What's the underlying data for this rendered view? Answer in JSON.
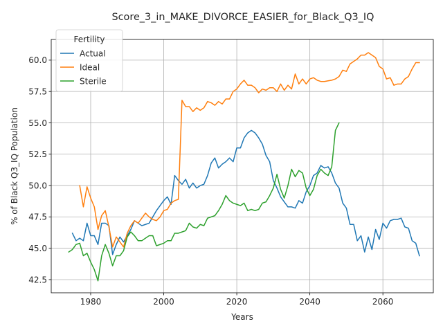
{
  "chart_data": {
    "type": "line",
    "title": "Score_3_in_MAKE_DIVORCE_EASIER_for_Black_Q3_IQ",
    "xlabel": "Years",
    "ylabel": "% of Black Q3_IQ Population",
    "xlim": [
      1969.2,
      2073.8
    ],
    "ylim": [
      41.45,
      61.65
    ],
    "xticks": [
      1980,
      2000,
      2020,
      2040,
      2060
    ],
    "xtick_labels": [
      "1980",
      "2000",
      "2020",
      "2040",
      "2060"
    ],
    "yticks": [
      42.5,
      45.0,
      47.5,
      50.0,
      52.5,
      55.0,
      57.5,
      60.0
    ],
    "ytick_labels": [
      "42.5",
      "45.0",
      "47.5",
      "50.0",
      "52.5",
      "55.0",
      "57.5",
      "60.0"
    ],
    "grid": true,
    "legend": {
      "title": "Fertility",
      "placement": "upper-left"
    },
    "series": [
      {
        "name": "Actual",
        "color": "#1f77b4",
        "x": [
          1975,
          1976,
          1977,
          1978,
          1979,
          1980,
          1981,
          1982,
          1983,
          1984,
          1985,
          1986,
          1987,
          1988,
          1989,
          1990,
          1991,
          1992,
          1993,
          1994,
          1995,
          1996,
          1997,
          1998,
          1999,
          2000,
          2001,
          2002,
          2003,
          2004,
          2005,
          2006,
          2007,
          2008,
          2009,
          2010,
          2011,
          2012,
          2013,
          2014,
          2015,
          2016,
          2017,
          2018,
          2019,
          2020,
          2021,
          2022,
          2023,
          2024,
          2025,
          2026,
          2027,
          2028,
          2029,
          2030,
          2031,
          2032,
          2033,
          2034,
          2035,
          2036,
          2037,
          2038,
          2039,
          2040,
          2041,
          2042,
          2043,
          2044,
          2045,
          2046,
          2047,
          2048,
          2049,
          2050,
          2051,
          2052,
          2053,
          2054,
          2055,
          2056,
          2057,
          2058,
          2059,
          2060,
          2061,
          2062,
          2063,
          2064,
          2065,
          2066,
          2067,
          2068,
          2069,
          2070
        ],
        "y": [
          46.2,
          45.6,
          45.8,
          45.6,
          47.0,
          46.0,
          46.0,
          45.3,
          47.0,
          47.0,
          46.8,
          44.5,
          45.3,
          45.9,
          45.5,
          46.0,
          46.5,
          47.2,
          47.0,
          46.8,
          46.9,
          47.0,
          47.5,
          48.0,
          48.4,
          48.8,
          49.1,
          48.5,
          50.8,
          50.4,
          50.1,
          50.5,
          49.8,
          50.2,
          49.8,
          50.0,
          50.1,
          50.8,
          51.8,
          52.2,
          51.4,
          51.7,
          51.9,
          52.2,
          51.9,
          53.0,
          53.0,
          53.8,
          54.2,
          54.4,
          54.2,
          53.8,
          53.3,
          52.4,
          51.9,
          50.4,
          49.8,
          49.1,
          48.7,
          48.3,
          48.3,
          48.2,
          48.8,
          48.6,
          49.5,
          50.0,
          50.8,
          51.0,
          51.6,
          51.4,
          51.5,
          51.0,
          50.2,
          49.8,
          48.6,
          48.2,
          46.9,
          46.9,
          45.6,
          46.0,
          44.7,
          45.9,
          44.9,
          46.5,
          45.7,
          47.0,
          46.6,
          47.2,
          47.3,
          47.3,
          47.4,
          46.7,
          46.6,
          45.6,
          45.4,
          44.4
        ]
      },
      {
        "name": "Ideal",
        "color": "#ff7f0e",
        "x": [
          1977,
          1978,
          1979,
          1980,
          1981,
          1982,
          1983,
          1984,
          1985,
          1986,
          1987,
          1988,
          1989,
          1990,
          1991,
          1992,
          1993,
          1994,
          1995,
          1996,
          1997,
          1998,
          1999,
          2000,
          2001,
          2002,
          2003,
          2004,
          2005,
          2006,
          2007,
          2008,
          2009,
          2010,
          2011,
          2012,
          2013,
          2014,
          2015,
          2016,
          2017,
          2018,
          2019,
          2020,
          2021,
          2022,
          2023,
          2024,
          2025,
          2026,
          2027,
          2028,
          2029,
          2030,
          2031,
          2032,
          2033,
          2034,
          2035,
          2036,
          2037,
          2038,
          2039,
          2040,
          2041,
          2042,
          2043,
          2044,
          2045,
          2046,
          2047,
          2048,
          2049,
          2050,
          2051,
          2052,
          2053,
          2054,
          2055,
          2056,
          2057,
          2058,
          2059,
          2060,
          2061,
          2062,
          2063,
          2064,
          2065,
          2066,
          2067,
          2068,
          2069,
          2070
        ],
        "y": [
          50.0,
          48.3,
          49.9,
          49.0,
          48.3,
          46.5,
          47.6,
          48.0,
          46.7,
          45.1,
          45.9,
          45.5,
          45.1,
          46.2,
          46.8,
          47.2,
          47.0,
          47.4,
          47.8,
          47.5,
          47.3,
          47.2,
          47.5,
          48.0,
          48.1,
          48.6,
          48.8,
          48.9,
          56.8,
          56.3,
          56.3,
          55.9,
          56.2,
          56.0,
          56.2,
          56.7,
          56.6,
          56.4,
          56.7,
          56.5,
          56.9,
          56.9,
          57.5,
          57.7,
          58.1,
          58.4,
          58.0,
          58.0,
          57.8,
          57.4,
          57.7,
          57.6,
          57.8,
          57.8,
          57.5,
          58.1,
          57.6,
          58.0,
          57.7,
          58.9,
          58.1,
          58.5,
          58.1,
          58.5,
          58.6,
          58.4,
          58.3,
          58.3,
          58.35,
          58.4,
          58.5,
          58.7,
          59.2,
          59.1,
          59.7,
          59.9,
          60.1,
          60.4,
          60.4,
          60.6,
          60.4,
          60.2,
          59.5,
          59.3,
          58.5,
          58.6,
          58.0,
          58.1,
          58.1,
          58.5,
          58.7,
          59.3,
          59.8,
          59.8
        ]
      },
      {
        "name": "Sterile",
        "color": "#2ca02c",
        "x": [
          1974,
          1975,
          1976,
          1977,
          1978,
          1979,
          1980,
          1981,
          1982,
          1983,
          1984,
          1985,
          1986,
          1987,
          1988,
          1989,
          1990,
          1991,
          1992,
          1993,
          1994,
          1995,
          1996,
          1997,
          1998,
          1999,
          2000,
          2001,
          2002,
          2003,
          2004,
          2005,
          2006,
          2007,
          2008,
          2009,
          2010,
          2011,
          2012,
          2013,
          2014,
          2015,
          2016,
          2017,
          2018,
          2019,
          2020,
          2021,
          2022,
          2023,
          2024,
          2025,
          2026,
          2027,
          2028,
          2029,
          2030,
          2031,
          2032,
          2033,
          2034,
          2035,
          2036,
          2037,
          2038,
          2039,
          2040,
          2041,
          2042,
          2043,
          2044,
          2045,
          2046,
          2047,
          2048
        ],
        "y": [
          44.7,
          44.9,
          45.3,
          45.4,
          44.4,
          44.6,
          43.9,
          43.3,
          42.4,
          44.4,
          45.3,
          44.6,
          43.6,
          44.4,
          44.4,
          44.8,
          45.9,
          46.3,
          46.0,
          45.6,
          45.6,
          45.8,
          46.0,
          46.0,
          45.2,
          45.3,
          45.4,
          45.6,
          45.6,
          46.2,
          46.2,
          46.3,
          46.4,
          47.0,
          46.7,
          46.6,
          46.9,
          46.8,
          47.4,
          47.5,
          47.6,
          48.0,
          48.5,
          49.2,
          48.8,
          48.6,
          48.5,
          48.4,
          48.6,
          48.0,
          48.1,
          48.0,
          48.1,
          48.6,
          48.7,
          49.2,
          49.8,
          50.9,
          49.7,
          49.0,
          50.0,
          51.3,
          50.7,
          51.2,
          51.0,
          49.8,
          49.2,
          49.7,
          50.8,
          51.3,
          51.0,
          50.8,
          51.5,
          54.4,
          55.0
        ]
      }
    ]
  }
}
